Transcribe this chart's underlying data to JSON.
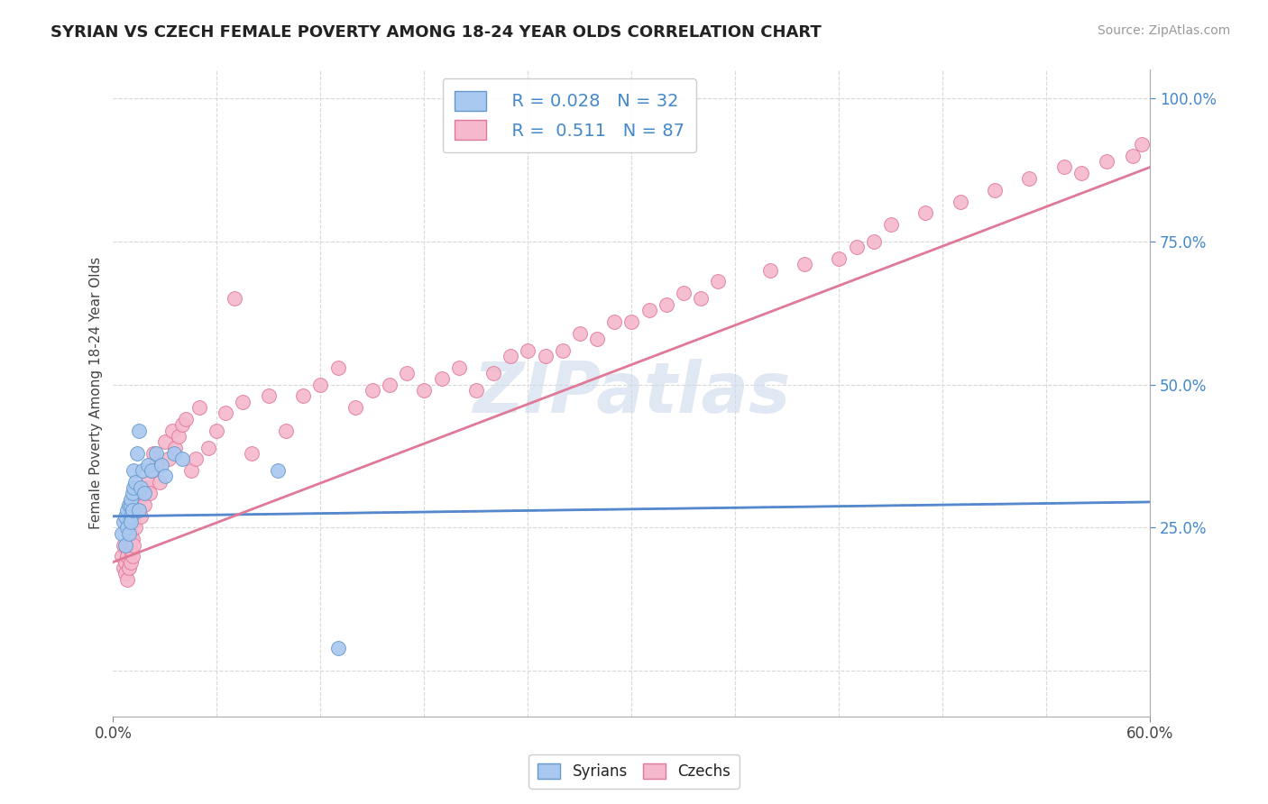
{
  "title": "SYRIAN VS CZECH FEMALE POVERTY AMONG 18-24 YEAR OLDS CORRELATION CHART",
  "source": "Source: ZipAtlas.com",
  "ylabel": "Female Poverty Among 18-24 Year Olds",
  "xlim": [
    0.0,
    0.6
  ],
  "ylim": [
    -0.08,
    1.05
  ],
  "background_color": "#ffffff",
  "watermark_text": "ZIPatlas",
  "watermark_color": "#ccdaeb",
  "legend_R1": "0.028",
  "legend_N1": "32",
  "legend_R2": "0.511",
  "legend_N2": "87",
  "syrians_color": "#a8c8f0",
  "syrians_edge": "#6699cc",
  "czechs_color": "#f5b8cc",
  "czechs_edge": "#e07898",
  "line_syrians_color": "#5588cc",
  "line_czechs_color": "#e07898",
  "grid_color": "#d8d8d8",
  "right_tick_color": "#4488cc",
  "title_color": "#222222",
  "source_color": "#999999",
  "syrians_x": [
    0.005,
    0.006,
    0.007,
    0.007,
    0.008,
    0.008,
    0.009,
    0.009,
    0.01,
    0.01,
    0.01,
    0.01,
    0.011,
    0.011,
    0.012,
    0.012,
    0.013,
    0.014,
    0.015,
    0.015,
    0.016,
    0.017,
    0.018,
    0.02,
    0.022,
    0.025,
    0.028,
    0.03,
    0.035,
    0.04,
    0.095,
    0.13
  ],
  "syrians_y": [
    0.24,
    0.26,
    0.27,
    0.22,
    0.28,
    0.25,
    0.29,
    0.24,
    0.29,
    0.27,
    0.26,
    0.3,
    0.31,
    0.28,
    0.32,
    0.35,
    0.33,
    0.38,
    0.42,
    0.28,
    0.32,
    0.35,
    0.31,
    0.36,
    0.35,
    0.38,
    0.36,
    0.34,
    0.38,
    0.37,
    0.35,
    0.04
  ],
  "czechs_x": [
    0.005,
    0.006,
    0.006,
    0.007,
    0.007,
    0.008,
    0.008,
    0.009,
    0.009,
    0.01,
    0.01,
    0.01,
    0.011,
    0.011,
    0.012,
    0.012,
    0.013,
    0.014,
    0.015,
    0.016,
    0.017,
    0.018,
    0.019,
    0.02,
    0.021,
    0.022,
    0.023,
    0.025,
    0.027,
    0.03,
    0.032,
    0.034,
    0.036,
    0.038,
    0.04,
    0.042,
    0.045,
    0.048,
    0.05,
    0.055,
    0.06,
    0.065,
    0.07,
    0.075,
    0.08,
    0.09,
    0.1,
    0.11,
    0.12,
    0.13,
    0.14,
    0.15,
    0.16,
    0.17,
    0.18,
    0.19,
    0.2,
    0.21,
    0.22,
    0.23,
    0.24,
    0.25,
    0.26,
    0.27,
    0.28,
    0.29,
    0.3,
    0.31,
    0.32,
    0.33,
    0.34,
    0.35,
    0.38,
    0.4,
    0.42,
    0.43,
    0.44,
    0.45,
    0.47,
    0.49,
    0.51,
    0.53,
    0.55,
    0.56,
    0.575,
    0.59,
    0.595
  ],
  "czechs_y": [
    0.2,
    0.18,
    0.22,
    0.19,
    0.17,
    0.2,
    0.16,
    0.18,
    0.22,
    0.21,
    0.19,
    0.24,
    0.23,
    0.2,
    0.26,
    0.22,
    0.25,
    0.28,
    0.3,
    0.27,
    0.31,
    0.29,
    0.32,
    0.33,
    0.31,
    0.35,
    0.38,
    0.36,
    0.33,
    0.4,
    0.37,
    0.42,
    0.39,
    0.41,
    0.43,
    0.44,
    0.35,
    0.37,
    0.46,
    0.39,
    0.42,
    0.45,
    0.65,
    0.47,
    0.38,
    0.48,
    0.42,
    0.48,
    0.5,
    0.53,
    0.46,
    0.49,
    0.5,
    0.52,
    0.49,
    0.51,
    0.53,
    0.49,
    0.52,
    0.55,
    0.56,
    0.55,
    0.56,
    0.59,
    0.58,
    0.61,
    0.61,
    0.63,
    0.64,
    0.66,
    0.65,
    0.68,
    0.7,
    0.71,
    0.72,
    0.74,
    0.75,
    0.78,
    0.8,
    0.82,
    0.84,
    0.86,
    0.88,
    0.87,
    0.89,
    0.9,
    0.92
  ]
}
